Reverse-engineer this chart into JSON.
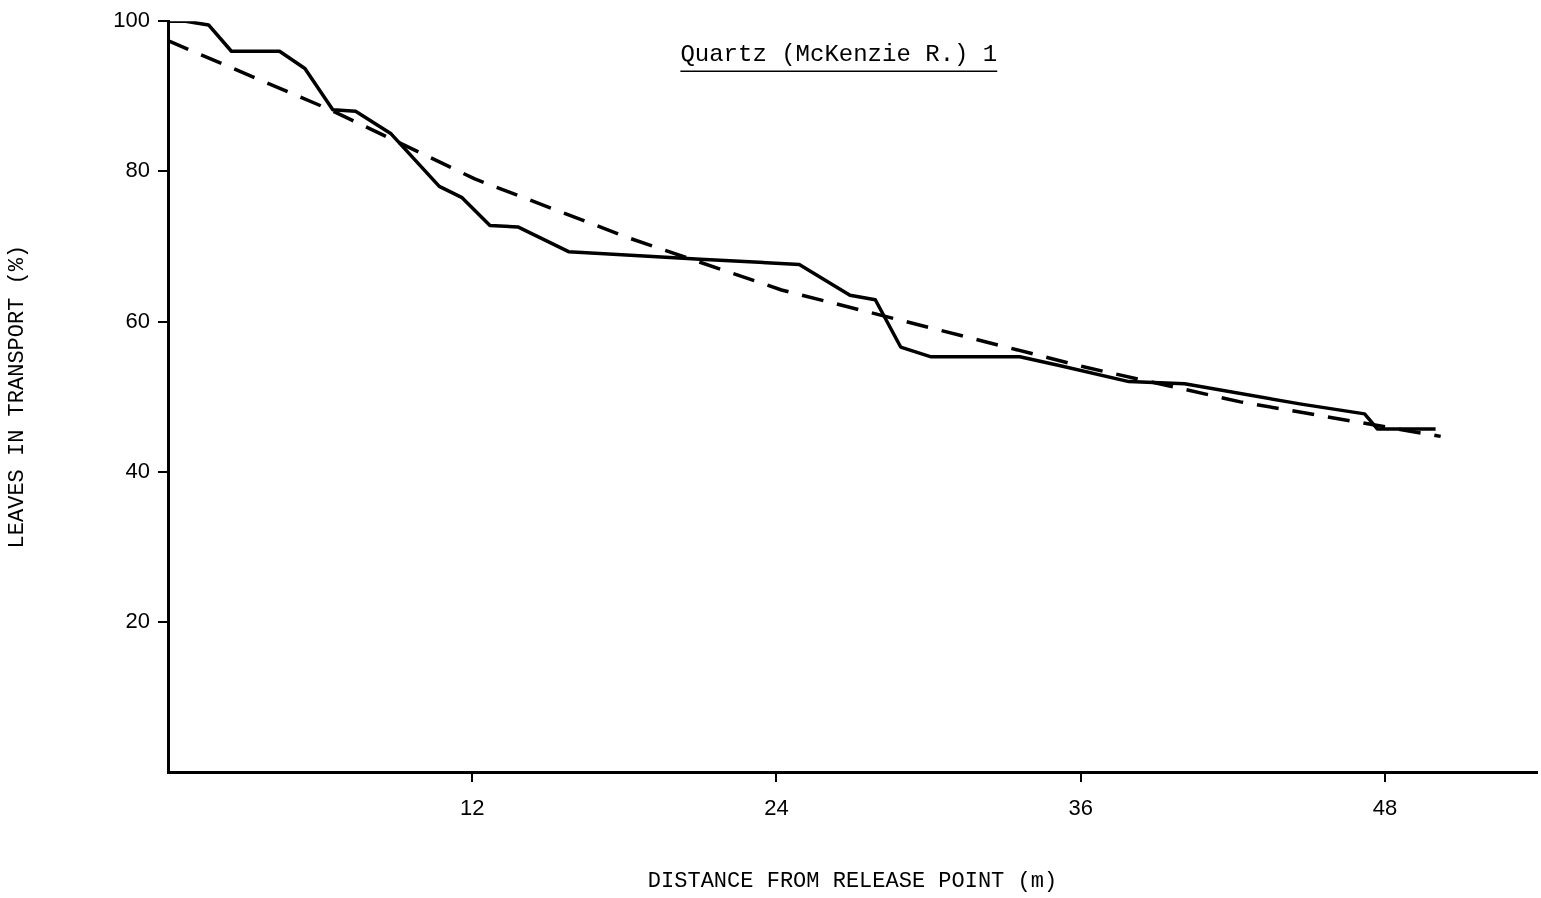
{
  "chart_data": {
    "type": "line",
    "title": "Quartz (McKenzie R.) 1",
    "xlabel": "DISTANCE FROM RELEASE POINT (m)",
    "ylabel": "LEAVES IN TRANSPORT (%)",
    "xlim": [
      0,
      54
    ],
    "xticks": [
      12,
      24,
      36,
      48
    ],
    "ylim": [
      0,
      100
    ],
    "yticks": [
      20,
      40,
      60,
      80,
      100
    ],
    "grid": false,
    "legend": false,
    "marker": "none",
    "series": [
      {
        "color": "#000000",
        "line_style": "solid",
        "x": [
          0,
          0.7,
          1.6,
          2.5,
          4.4,
          5.4,
          6.5,
          7.4,
          8.8,
          10.7,
          11.6,
          12.7,
          13.8,
          15.8,
          21,
          24.9,
          26.9,
          27.9,
          28.9,
          30.1,
          33.6,
          35.2,
          37.9,
          40.1,
          44.7,
          47.2,
          47.7,
          50
        ],
        "values": [
          100,
          100,
          99.5,
          96,
          96,
          93.7,
          88.2,
          88,
          85,
          78,
          76.5,
          72.8,
          72.6,
          69.3,
          68.3,
          67.6,
          63.5,
          62.9,
          56.6,
          55.3,
          55.3,
          54.1,
          52,
          51.7,
          49,
          47.7,
          45.7,
          45.7
        ]
      },
      {
        "color": "#000000",
        "line_style": "dashed",
        "x": [
          0,
          6.4,
          12.1,
          18.2,
          24.2,
          30.5,
          36.2,
          42.3,
          50.2
        ],
        "values": [
          97.4,
          88.2,
          79,
          71.1,
          64.2,
          58.8,
          53.9,
          49.3,
          44.7
        ]
      }
    ]
  }
}
